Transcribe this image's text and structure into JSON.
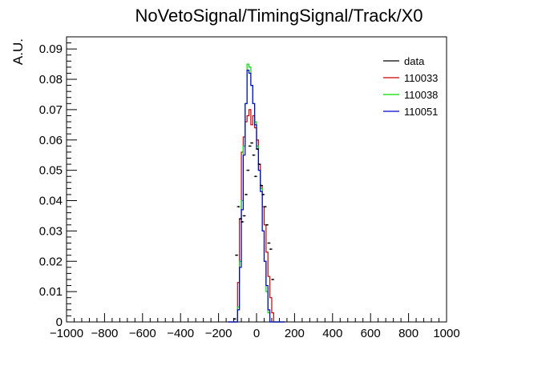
{
  "chart_data": {
    "type": "line",
    "title": "NoVetoSignal/TimingSignal/Track/X0",
    "xlabel": "",
    "ylabel": "A.U.",
    "xlim": [
      -1000,
      1000
    ],
    "ylim": [
      0,
      0.094
    ],
    "x_ticks": [
      -1000,
      -800,
      -600,
      -400,
      -200,
      0,
      200,
      400,
      600,
      800,
      1000
    ],
    "x_tick_labels": [
      "−1000",
      "−800",
      "−600",
      "−400",
      "−200",
      "0",
      "200",
      "400",
      "600",
      "800",
      "1000"
    ],
    "y_ticks": [
      0,
      0.01,
      0.02,
      0.03,
      0.04,
      0.05,
      0.06,
      0.07,
      0.08,
      0.09
    ],
    "y_tick_labels": [
      "0",
      "0.01",
      "0.02",
      "0.03",
      "0.04",
      "0.05",
      "0.06",
      "0.07",
      "0.08",
      "0.09"
    ],
    "bin_width": 10,
    "bin_centers": [
      -145,
      -135,
      -125,
      -115,
      -105,
      -95,
      -85,
      -75,
      -65,
      -55,
      -45,
      -35,
      -25,
      -15,
      -5,
      5,
      15,
      25,
      35,
      45,
      55,
      65,
      75,
      85,
      95,
      105,
      115,
      125,
      135,
      145
    ],
    "legend_position": "top-right",
    "series": [
      {
        "name": "data",
        "style": "points",
        "color": "#000000",
        "values": [
          0,
          0,
          0,
          0.001,
          0.022,
          0.038,
          0.034,
          0.033,
          0.035,
          0.042,
          0.05,
          0.058,
          0.059,
          0.055,
          0.048,
          0.057,
          0.052,
          0.045,
          0.042,
          0.038,
          0.032,
          0.026,
          0.024,
          0.014,
          0,
          0,
          0,
          0,
          0,
          0
        ]
      },
      {
        "name": "110033",
        "style": "step",
        "color": "#cc0000",
        "values": [
          0,
          0,
          0,
          0,
          0,
          0.013,
          0.034,
          0.056,
          0.061,
          0.066,
          0.068,
          0.07,
          0.065,
          0.068,
          0.064,
          0.06,
          0.052,
          0.045,
          0.038,
          0.032,
          0.023,
          0.015,
          0.008,
          0.003,
          0,
          0,
          0,
          0,
          0,
          0
        ]
      },
      {
        "name": "110038",
        "style": "step",
        "color": "#00dd00",
        "values": [
          0,
          0,
          0,
          0,
          0,
          0.005,
          0.02,
          0.04,
          0.058,
          0.072,
          0.085,
          0.084,
          0.078,
          0.072,
          0.066,
          0.058,
          0.05,
          0.044,
          0.03,
          0.02,
          0.01,
          0.003,
          0,
          0,
          0,
          0,
          0,
          0,
          0,
          0
        ]
      },
      {
        "name": "110051",
        "style": "step",
        "color": "#0000cc",
        "values": [
          0,
          0,
          0,
          0,
          0,
          0.004,
          0.018,
          0.037,
          0.055,
          0.072,
          0.083,
          0.082,
          0.078,
          0.072,
          0.065,
          0.057,
          0.05,
          0.043,
          0.03,
          0.02,
          0.012,
          0.004,
          0,
          0,
          0,
          0,
          0,
          0,
          0,
          0
        ]
      }
    ]
  }
}
